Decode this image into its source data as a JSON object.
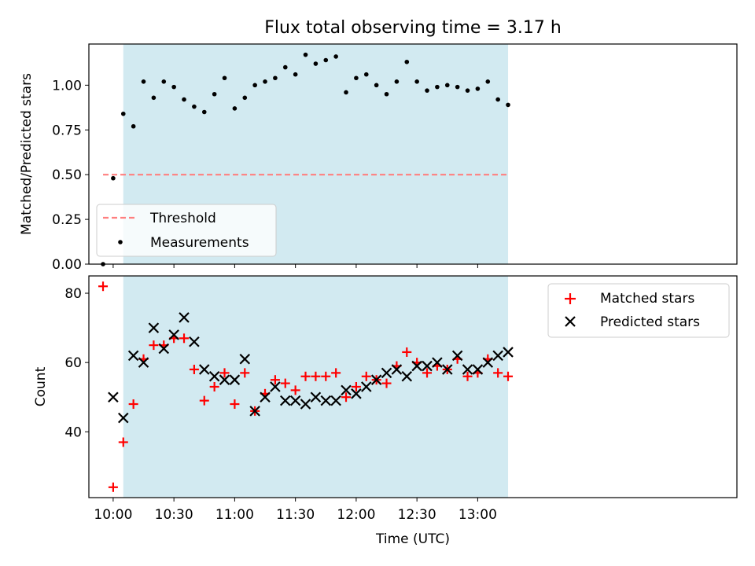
{
  "chart_data": [
    {
      "type": "scatter",
      "title": "Flux total observing time = 3.17 h",
      "ylabel": "Matched/Predicted stars",
      "ylim": [
        0,
        1.23
      ],
      "x_range_minutes": [
        -12,
        308
      ],
      "yticks": [
        "0.00",
        "0.25",
        "0.50",
        "0.75",
        "1.00"
      ],
      "yticks_values": [
        0,
        0.25,
        0.5,
        0.75,
        1.0
      ],
      "shaded_span": [
        "10:05",
        "13:15"
      ],
      "shaded_color": "#add8e6",
      "legend_position": "lower left",
      "threshold": {
        "name": "Threshold",
        "value": 0.5,
        "x_start": "09:55",
        "x_end": "13:15",
        "color": "#ff7f7f"
      },
      "series": [
        {
          "name": "Measurements",
          "color": "#000000",
          "x": [
            "09:55",
            "10:00",
            "10:05",
            "10:10",
            "10:15",
            "10:20",
            "10:25",
            "10:30",
            "10:35",
            "10:40",
            "10:45",
            "10:50",
            "10:55",
            "11:00",
            "11:05",
            "11:10",
            "11:15",
            "11:20",
            "11:25",
            "11:30",
            "11:35",
            "11:40",
            "11:45",
            "11:50",
            "11:55",
            "12:00",
            "12:05",
            "12:10",
            "12:15",
            "12:20",
            "12:25",
            "12:30",
            "12:35",
            "12:40",
            "12:45",
            "12:50",
            "12:55",
            "13:00",
            "13:05",
            "13:10",
            "13:15"
          ],
          "y": [
            0.0,
            0.48,
            0.84,
            0.77,
            1.02,
            0.93,
            1.02,
            0.99,
            0.92,
            0.88,
            0.85,
            0.95,
            1.04,
            0.87,
            0.93,
            1.0,
            1.02,
            1.04,
            1.1,
            1.06,
            1.17,
            1.12,
            1.14,
            1.16,
            0.96,
            1.04,
            1.06,
            1.0,
            0.95,
            1.02,
            1.13,
            1.02,
            0.97,
            0.99,
            1.0,
            0.99,
            0.97,
            0.98,
            1.02,
            0.92,
            0.89
          ]
        }
      ]
    },
    {
      "type": "scatter",
      "xlabel": "Time (UTC)",
      "ylabel": "Count",
      "ylim": [
        21,
        85
      ],
      "x_range_minutes": [
        -12,
        308
      ],
      "yticks": [
        "40",
        "60",
        "80"
      ],
      "yticks_values": [
        40,
        60,
        80
      ],
      "xticks": [
        "10:00",
        "10:30",
        "11:00",
        "11:30",
        "12:00",
        "12:30",
        "13:00"
      ],
      "shaded_span": [
        "10:05",
        "13:15"
      ],
      "shaded_color": "#add8e6",
      "legend_position": "upper right",
      "x": [
        "09:55",
        "10:00",
        "10:05",
        "10:10",
        "10:15",
        "10:20",
        "10:25",
        "10:30",
        "10:35",
        "10:40",
        "10:45",
        "10:50",
        "10:55",
        "11:00",
        "11:05",
        "11:10",
        "11:15",
        "11:20",
        "11:25",
        "11:30",
        "11:35",
        "11:40",
        "11:45",
        "11:50",
        "11:55",
        "12:00",
        "12:05",
        "12:10",
        "12:15",
        "12:20",
        "12:25",
        "12:30",
        "12:35",
        "12:40",
        "12:45",
        "12:50",
        "12:55",
        "13:00",
        "13:05",
        "13:10",
        "13:15"
      ],
      "series": [
        {
          "name": "Matched stars",
          "marker": "plus",
          "color": "#ff0000",
          "values": [
            82,
            24,
            37,
            48,
            61,
            65,
            65,
            67,
            67,
            58,
            49,
            53,
            57,
            48,
            57,
            46,
            51,
            55,
            54,
            52,
            56,
            56,
            56,
            57,
            50,
            53,
            56,
            55,
            54,
            59,
            63,
            60,
            57,
            59,
            58,
            61,
            56,
            57,
            61,
            57,
            56
          ]
        },
        {
          "name": "Predicted stars",
          "marker": "cross",
          "color": "#000000",
          "values": [
            null,
            50,
            44,
            62,
            60,
            70,
            64,
            68,
            73,
            66,
            58,
            56,
            55,
            55,
            61,
            46,
            50,
            53,
            49,
            49,
            48,
            50,
            49,
            49,
            52,
            51,
            53,
            55,
            57,
            58,
            56,
            59,
            59,
            60,
            58,
            62,
            58,
            58,
            60,
            62,
            63
          ]
        }
      ]
    }
  ]
}
